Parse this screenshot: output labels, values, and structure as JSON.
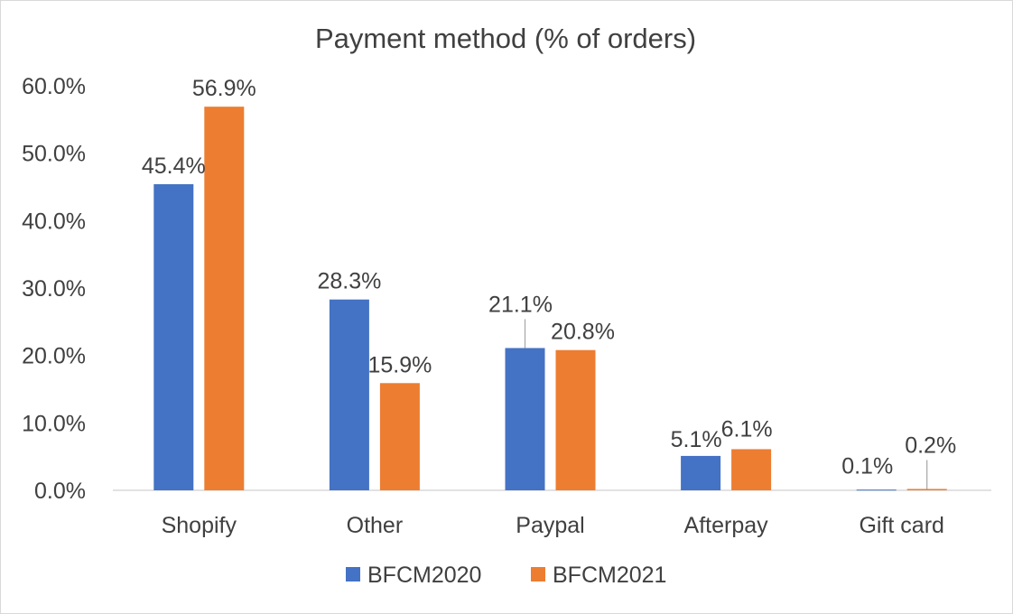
{
  "chart_data": {
    "type": "bar",
    "title": "Payment method (% of orders)",
    "categories": [
      "Shopify",
      "Other",
      "Paypal",
      "Afterpay",
      "Gift card"
    ],
    "series": [
      {
        "name": "BFCM2020",
        "color": "#4472c4",
        "values": [
          45.4,
          28.3,
          21.1,
          5.1,
          0.1
        ],
        "labels": [
          "45.4%",
          "28.3%",
          "21.1%",
          "5.1%",
          "0.1%"
        ]
      },
      {
        "name": "BFCM2021",
        "color": "#ed7d31",
        "values": [
          56.9,
          15.9,
          20.8,
          6.1,
          0.2
        ],
        "labels": [
          "56.9%",
          "15.9%",
          "20.8%",
          "6.1%",
          "0.2%"
        ]
      }
    ],
    "ylim": [
      0,
      60
    ],
    "yticks": [
      0,
      10,
      20,
      30,
      40,
      50,
      60
    ],
    "ytick_labels": [
      "0.0%",
      "10.0%",
      "20.0%",
      "30.0%",
      "40.0%",
      "50.0%",
      "60.0%"
    ],
    "grid": false,
    "legend": "bottom",
    "axis_color": "#d9d9d9",
    "text_color": "#404040"
  }
}
